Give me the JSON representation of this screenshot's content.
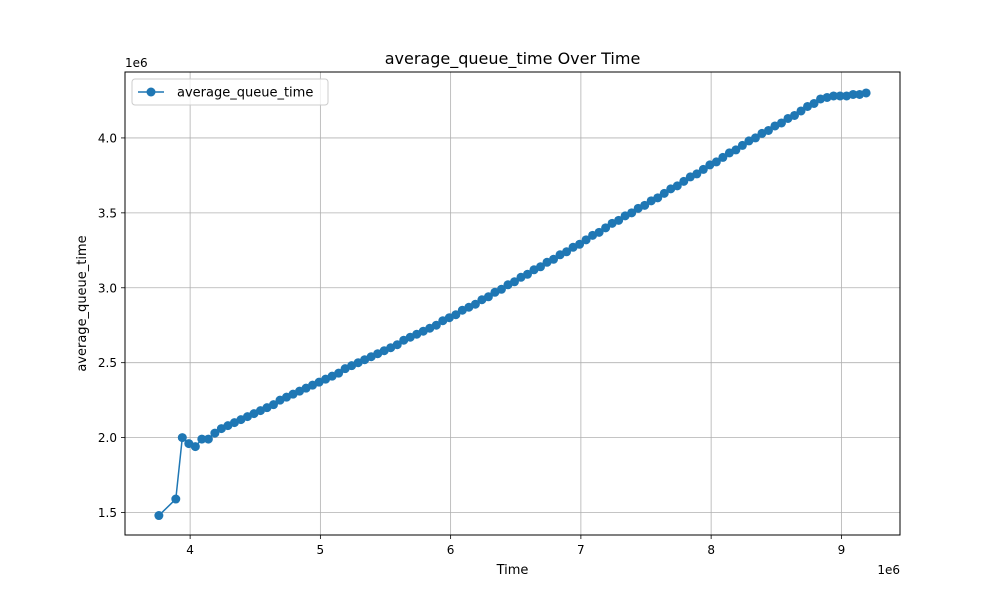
{
  "chart_data": {
    "type": "line",
    "title": "average_queue_time Over Time",
    "xlabel": "Time",
    "ylabel": "average_queue_time",
    "x_offset_label": "1e6",
    "y_offset_label": "1e6",
    "x_ticks": [
      4,
      5,
      6,
      7,
      8,
      9
    ],
    "y_ticks": [
      1.5,
      2.0,
      2.5,
      3.0,
      3.5,
      4.0
    ],
    "x_tick_labels": [
      "4",
      "5",
      "6",
      "7",
      "8",
      "9"
    ],
    "y_tick_labels": [
      "1.5",
      "2.0",
      "2.5",
      "3.0",
      "3.5",
      "4.0"
    ],
    "xlim": [
      3.5,
      9.45
    ],
    "ylim": [
      1.35,
      4.44
    ],
    "grid": true,
    "legend_position": "upper-left",
    "color": "#1f77b4",
    "series": [
      {
        "name": "average_queue_time",
        "x": [
          3.76,
          3.89,
          3.94,
          3.99,
          4.04,
          4.09,
          4.14,
          4.19,
          4.24,
          4.29,
          4.34,
          4.39,
          4.44,
          4.49,
          4.54,
          4.59,
          4.64,
          4.69,
          4.74,
          4.79,
          4.84,
          4.89,
          4.94,
          4.99,
          5.04,
          5.09,
          5.14,
          5.19,
          5.24,
          5.29,
          5.34,
          5.39,
          5.44,
          5.49,
          5.54,
          5.59,
          5.64,
          5.69,
          5.74,
          5.79,
          5.84,
          5.89,
          5.94,
          5.99,
          6.04,
          6.09,
          6.14,
          6.19,
          6.24,
          6.29,
          6.34,
          6.39,
          6.44,
          6.49,
          6.54,
          6.59,
          6.64,
          6.69,
          6.74,
          6.79,
          6.84,
          6.89,
          6.94,
          6.99,
          7.04,
          7.09,
          7.14,
          7.19,
          7.24,
          7.29,
          7.34,
          7.39,
          7.44,
          7.49,
          7.54,
          7.59,
          7.64,
          7.69,
          7.74,
          7.79,
          7.84,
          7.89,
          7.94,
          7.99,
          8.04,
          8.09,
          8.14,
          8.19,
          8.24,
          8.29,
          8.34,
          8.39,
          8.44,
          8.49,
          8.54,
          8.59,
          8.64,
          8.69,
          8.74,
          8.79,
          8.84,
          8.89,
          8.94,
          8.99,
          9.04,
          9.09,
          9.14,
          9.19
        ],
        "y": [
          1.48,
          1.59,
          2.0,
          1.96,
          1.94,
          1.99,
          1.99,
          2.03,
          2.06,
          2.08,
          2.1,
          2.12,
          2.14,
          2.16,
          2.18,
          2.2,
          2.22,
          2.25,
          2.27,
          2.29,
          2.31,
          2.33,
          2.35,
          2.37,
          2.39,
          2.41,
          2.43,
          2.46,
          2.48,
          2.5,
          2.52,
          2.54,
          2.56,
          2.58,
          2.6,
          2.62,
          2.65,
          2.67,
          2.69,
          2.71,
          2.73,
          2.75,
          2.78,
          2.8,
          2.82,
          2.85,
          2.87,
          2.89,
          2.92,
          2.94,
          2.97,
          2.99,
          3.02,
          3.04,
          3.07,
          3.09,
          3.12,
          3.14,
          3.17,
          3.19,
          3.22,
          3.24,
          3.27,
          3.29,
          3.32,
          3.35,
          3.37,
          3.4,
          3.43,
          3.45,
          3.48,
          3.5,
          3.53,
          3.55,
          3.58,
          3.6,
          3.63,
          3.66,
          3.68,
          3.71,
          3.74,
          3.76,
          3.79,
          3.82,
          3.84,
          3.87,
          3.9,
          3.92,
          3.95,
          3.98,
          4.0,
          4.03,
          4.05,
          4.08,
          4.1,
          4.13,
          4.15,
          4.18,
          4.21,
          4.23,
          4.26,
          4.27,
          4.28,
          4.28,
          4.28,
          4.29,
          4.29,
          4.3
        ]
      }
    ]
  }
}
